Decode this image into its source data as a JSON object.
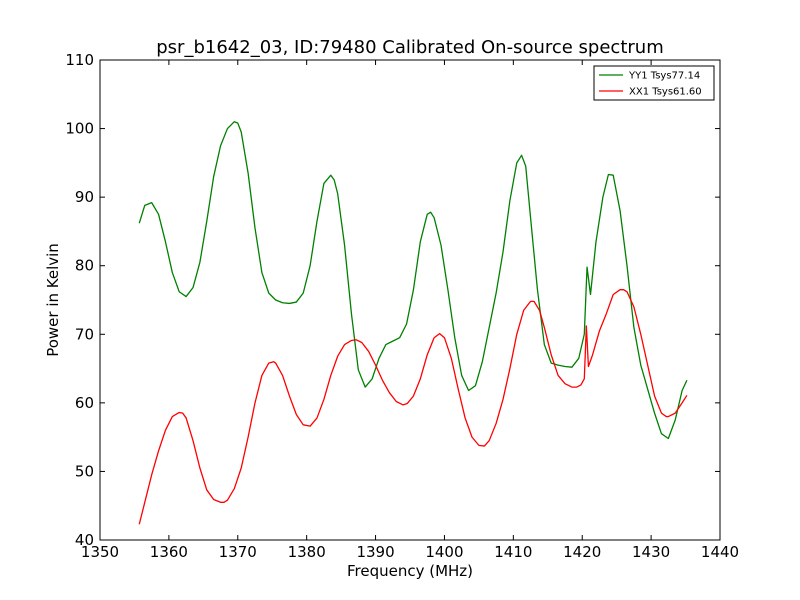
{
  "chart_data": {
    "type": "line",
    "title": "psr_b1642_03, ID:79480 Calibrated On-source spectrum",
    "xlabel": "Frequency (MHz)",
    "ylabel": "Power in Kelvin",
    "xlim": [
      1350,
      1440
    ],
    "ylim": [
      40,
      110
    ],
    "xticks": [
      1350,
      1360,
      1370,
      1380,
      1390,
      1400,
      1410,
      1420,
      1430,
      1440
    ],
    "yticks": [
      40,
      50,
      60,
      70,
      80,
      90,
      100,
      110
    ],
    "grid": false,
    "legend_position": "top-right",
    "series": [
      {
        "name": "YY1 Tsys77.14",
        "color": "#008000",
        "x": [
          1355.7,
          1356.5,
          1357.5,
          1358.5,
          1359.5,
          1360.5,
          1361.5,
          1362.5,
          1363.5,
          1364.5,
          1365.5,
          1366.5,
          1367.5,
          1368.5,
          1369.5,
          1370.0,
          1370.5,
          1371.5,
          1372.5,
          1373.5,
          1374.5,
          1375.5,
          1376.5,
          1377.5,
          1378.5,
          1379.5,
          1380.5,
          1381.5,
          1382.5,
          1383.5,
          1384.0,
          1384.5,
          1385.5,
          1386.5,
          1387.5,
          1388.5,
          1389.5,
          1390.5,
          1391.5,
          1392.5,
          1393.5,
          1394.5,
          1395.5,
          1396.5,
          1397.5,
          1398.0,
          1398.5,
          1399.5,
          1400.5,
          1401.5,
          1402.5,
          1403.5,
          1404.5,
          1405.5,
          1406.5,
          1407.5,
          1408.5,
          1409.5,
          1410.5,
          1411.2,
          1411.8,
          1412.5,
          1413.5,
          1414.5,
          1415.5,
          1416.5,
          1417.5,
          1418.5,
          1419.5,
          1420.3,
          1420.7,
          1421.2,
          1422.0,
          1423.0,
          1423.8,
          1424.5,
          1425.5,
          1426.5,
          1427.5,
          1428.5,
          1429.5,
          1430.5,
          1431.5,
          1432.5,
          1433.5,
          1434.5,
          1435.2
        ],
        "values": [
          86.2,
          88.8,
          89.2,
          87.5,
          83.5,
          79.0,
          76.2,
          75.5,
          76.8,
          80.5,
          86.5,
          93.0,
          97.5,
          100.0,
          101.0,
          100.8,
          99.5,
          93.5,
          85.5,
          79.0,
          76.0,
          75.0,
          74.6,
          74.5,
          74.7,
          76.0,
          80.0,
          86.5,
          92.0,
          93.2,
          92.5,
          90.5,
          83.0,
          73.0,
          64.8,
          62.3,
          63.5,
          66.5,
          68.5,
          69.0,
          69.5,
          71.5,
          76.5,
          83.5,
          87.5,
          87.8,
          87.0,
          83.0,
          76.5,
          69.5,
          64.0,
          61.8,
          62.5,
          66.0,
          71.0,
          76.0,
          82.0,
          89.5,
          95.0,
          96.1,
          94.5,
          87.0,
          76.5,
          68.5,
          65.8,
          65.5,
          65.3,
          65.2,
          66.5,
          70.0,
          79.8,
          75.8,
          83.5,
          90.0,
          93.3,
          93.2,
          88.0,
          80.0,
          71.0,
          65.5,
          62.0,
          58.5,
          55.5,
          54.8,
          57.5,
          61.8,
          63.3
        ]
      },
      {
        "name": "XX1 Tsys61.60",
        "color": "#ff0000",
        "x": [
          1355.7,
          1356.5,
          1357.5,
          1358.5,
          1359.5,
          1360.5,
          1361.5,
          1362.0,
          1362.5,
          1363.5,
          1364.5,
          1365.5,
          1366.5,
          1367.5,
          1368.0,
          1368.5,
          1369.5,
          1370.5,
          1371.5,
          1372.5,
          1373.5,
          1374.5,
          1375.2,
          1375.5,
          1376.5,
          1377.5,
          1378.5,
          1379.5,
          1380.5,
          1381.5,
          1382.5,
          1383.5,
          1384.5,
          1385.5,
          1386.5,
          1387.2,
          1388.0,
          1389.0,
          1390.0,
          1391.0,
          1392.0,
          1393.0,
          1394.0,
          1394.6,
          1395.5,
          1396.5,
          1397.5,
          1398.5,
          1399.3,
          1400.0,
          1401.0,
          1402.0,
          1403.0,
          1404.0,
          1405.0,
          1405.8,
          1406.5,
          1407.5,
          1408.5,
          1409.5,
          1410.5,
          1411.5,
          1412.5,
          1413.0,
          1413.8,
          1414.5,
          1415.5,
          1416.5,
          1417.5,
          1418.5,
          1419.2,
          1419.8,
          1420.3,
          1420.6,
          1420.9,
          1421.5,
          1422.5,
          1423.5,
          1424.5,
          1425.5,
          1426.0,
          1426.5,
          1427.5,
          1428.5,
          1429.5,
          1430.5,
          1431.5,
          1432.2,
          1432.5,
          1433.5,
          1434.5,
          1435.2
        ],
        "values": [
          42.3,
          45.5,
          49.5,
          53.0,
          56.0,
          58.0,
          58.6,
          58.5,
          57.8,
          54.5,
          50.5,
          47.3,
          45.9,
          45.5,
          45.5,
          45.8,
          47.5,
          50.5,
          55.0,
          60.0,
          64.0,
          65.8,
          66.0,
          65.8,
          64.0,
          61.0,
          58.3,
          56.8,
          56.6,
          57.8,
          60.5,
          64.0,
          66.8,
          68.5,
          69.1,
          69.2,
          68.8,
          67.5,
          65.5,
          63.3,
          61.5,
          60.2,
          59.7,
          59.9,
          61.0,
          63.5,
          67.0,
          69.5,
          70.1,
          69.5,
          66.5,
          62.0,
          57.8,
          55.0,
          53.8,
          53.7,
          54.5,
          57.0,
          60.5,
          65.0,
          70.0,
          73.5,
          74.8,
          74.8,
          73.5,
          71.0,
          67.0,
          64.0,
          62.8,
          62.3,
          62.3,
          62.6,
          63.5,
          71.2,
          65.3,
          67.0,
          70.5,
          73.0,
          75.8,
          76.5,
          76.5,
          76.2,
          74.0,
          70.0,
          65.5,
          61.0,
          58.5,
          58.0,
          58.0,
          58.5,
          60.0,
          61.1
        ]
      }
    ]
  }
}
